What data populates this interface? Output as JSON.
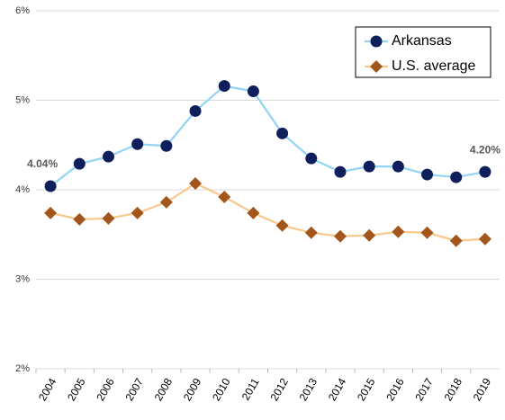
{
  "chart_data": {
    "type": "line",
    "categories": [
      "2004",
      "2005",
      "2006",
      "2007",
      "2008",
      "2009",
      "2010",
      "2011",
      "2012",
      "2013",
      "2014",
      "2015",
      "2016",
      "2017",
      "2018",
      "2019"
    ],
    "series": [
      {
        "name": "Arkansas",
        "marker": "circle",
        "color": "#0e1f5b",
        "line_color": "#92d4f4",
        "values": [
          4.04,
          4.29,
          4.37,
          4.51,
          4.49,
          4.88,
          5.16,
          5.1,
          4.63,
          4.35,
          4.2,
          4.26,
          4.26,
          4.17,
          4.14,
          4.2
        ],
        "value_labels": [
          "4.04%",
          null,
          null,
          null,
          null,
          null,
          null,
          null,
          null,
          null,
          null,
          null,
          null,
          null,
          null,
          "4.20%"
        ]
      },
      {
        "name": "U.S. average",
        "marker": "diamond",
        "color": "#a3561b",
        "line_color": "#f8c88e",
        "values": [
          3.74,
          3.67,
          3.68,
          3.74,
          3.86,
          4.07,
          3.92,
          3.74,
          3.6,
          3.52,
          3.48,
          3.49,
          3.53,
          3.52,
          3.43,
          3.45
        ]
      }
    ],
    "ylim": [
      2,
      6
    ],
    "yticks": [
      {
        "value": 2,
        "label": "2%"
      },
      {
        "value": 3,
        "label": "3%"
      },
      {
        "value": 4,
        "label": "4%"
      },
      {
        "value": 5,
        "label": "5%"
      },
      {
        "value": 6,
        "label": "6%"
      }
    ],
    "grid": true,
    "legend": "top-right"
  }
}
